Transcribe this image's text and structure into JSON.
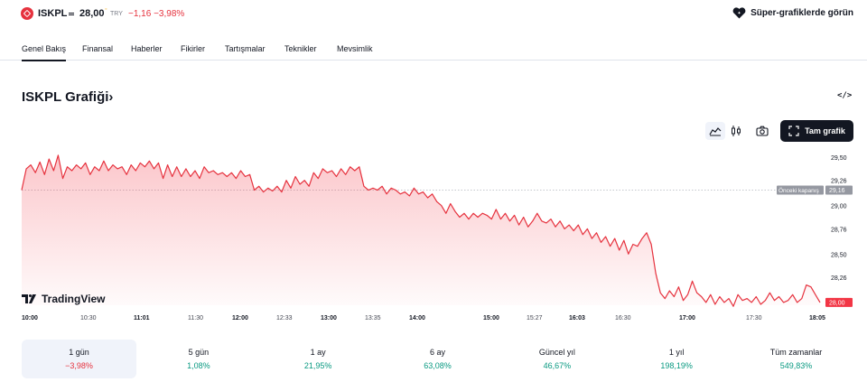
{
  "header": {
    "ticker": "ISKPL",
    "price": "28,00",
    "currency": "TRY",
    "change": "−1,16 −3,98%",
    "super_link": "Süper-grafiklerde görün"
  },
  "nav": {
    "items": [
      "Genel Bakış",
      "Finansal",
      "Haberler",
      "Fikirler",
      "Tartışmalar",
      "Teknikler",
      "Mevsimlik"
    ],
    "active": "Genel Bakış"
  },
  "chart_section": {
    "title": "ISKPL Grafiği",
    "title_chevron": "›",
    "embed_icon": "</>",
    "full_chart_label": "Tam grafik",
    "logo_text": "TradingView"
  },
  "chart_data": {
    "type": "area",
    "y_ticks": [
      "29,50",
      "29,26",
      "29,00",
      "28,76",
      "28,50",
      "28,26"
    ],
    "prev_close_label": "Önceki kapanış",
    "prev_close_value": "29,16",
    "last_price_label": "28,00",
    "x_ticks": [
      {
        "label": "10:00",
        "bold": true
      },
      {
        "label": "10:30",
        "bold": false
      },
      {
        "label": "11:01",
        "bold": true
      },
      {
        "label": "11:30",
        "bold": false
      },
      {
        "label": "12:00",
        "bold": true
      },
      {
        "label": "12:33",
        "bold": false
      },
      {
        "label": "13:00",
        "bold": true
      },
      {
        "label": "13:35",
        "bold": false
      },
      {
        "label": "14:00",
        "bold": true
      },
      {
        "label": "15:00",
        "bold": true
      },
      {
        "label": "15:27",
        "bold": false
      },
      {
        "label": "16:03",
        "bold": true
      },
      {
        "label": "16:30",
        "bold": false
      },
      {
        "label": "17:00",
        "bold": true
      },
      {
        "label": "17:30",
        "bold": false
      },
      {
        "label": "18:05",
        "bold": true
      }
    ],
    "ylim": [
      28.0,
      29.6
    ],
    "series": [
      {
        "values": [
          29.16,
          29.38,
          29.42,
          29.34,
          29.45,
          29.32,
          29.48,
          29.36,
          29.52,
          29.28,
          29.4,
          29.36,
          29.42,
          29.38,
          29.44,
          29.32,
          29.4,
          29.36,
          29.46,
          29.36,
          29.42,
          29.38,
          29.4,
          29.32,
          29.42,
          29.36,
          29.44,
          29.4,
          29.46,
          29.38,
          29.44,
          29.28,
          29.42,
          29.3,
          29.4,
          29.3,
          29.38,
          29.3,
          29.36,
          29.28,
          29.4,
          29.34,
          29.36,
          29.32,
          29.34,
          29.3,
          29.34,
          29.28,
          29.36,
          29.3,
          29.32,
          29.16,
          29.2,
          29.14,
          29.18,
          29.15,
          29.2,
          29.14,
          29.26,
          29.18,
          29.3,
          29.22,
          29.26,
          29.2,
          29.34,
          29.28,
          29.38,
          29.34,
          29.36,
          29.3,
          29.38,
          29.32,
          29.4,
          29.36,
          29.4,
          29.2,
          29.16,
          29.18,
          29.16,
          29.2,
          29.12,
          29.18,
          29.16,
          29.12,
          29.14,
          29.1,
          29.18,
          29.12,
          29.14,
          29.08,
          29.12,
          29.04,
          29.0,
          28.92,
          29.02,
          28.94,
          28.88,
          28.92,
          28.86,
          28.92,
          28.88,
          28.92,
          28.9,
          28.86,
          28.96,
          28.86,
          28.92,
          28.84,
          28.9,
          28.8,
          28.88,
          28.78,
          28.84,
          28.92,
          28.84,
          28.82,
          28.86,
          28.78,
          28.84,
          28.76,
          28.8,
          28.74,
          28.8,
          28.7,
          28.76,
          28.66,
          28.72,
          28.62,
          28.68,
          28.58,
          28.66,
          28.54,
          28.64,
          28.5,
          28.6,
          28.58,
          28.66,
          28.72,
          28.6,
          28.3,
          28.1,
          28.04,
          28.12,
          28.06,
          28.16,
          28.02,
          28.08,
          28.22,
          28.1,
          28.06,
          28.0,
          28.08,
          27.98,
          28.06,
          28.0,
          28.04,
          27.96,
          28.08,
          28.02,
          28.04,
          28.0,
          28.06,
          27.98,
          28.02,
          28.1,
          28.02,
          28.06,
          28.0,
          28.02,
          28.08,
          28.0,
          28.04,
          28.18,
          28.16,
          28.08,
          28.0
        ]
      }
    ]
  },
  "periods": [
    {
      "label": "1 gün",
      "value": "−3,98%",
      "color": "#e6323e",
      "selected": true
    },
    {
      "label": "5 gün",
      "value": "1,08%",
      "color": "#089981",
      "selected": false
    },
    {
      "label": "1 ay",
      "value": "21,95%",
      "color": "#089981",
      "selected": false
    },
    {
      "label": "6 ay",
      "value": "63,08%",
      "color": "#089981",
      "selected": false
    },
    {
      "label": "Güncel yıl",
      "value": "46,67%",
      "color": "#089981",
      "selected": false
    },
    {
      "label": "1 yıl",
      "value": "198,19%",
      "color": "#089981",
      "selected": false
    },
    {
      "label": "Tüm zamanlar",
      "value": "549,83%",
      "color": "#089981",
      "selected": false
    }
  ],
  "colors": {
    "accent_red": "#e6323e",
    "positive_green": "#089981",
    "text": "#131722",
    "muted": "#787b86"
  },
  "icons": {
    "logo": "ticker-logo-icon",
    "super": "heart-icon",
    "area": "area-chart-icon",
    "candle": "candlestick-icon",
    "camera": "camera-icon",
    "fullscreen": "fullscreen-icon"
  }
}
